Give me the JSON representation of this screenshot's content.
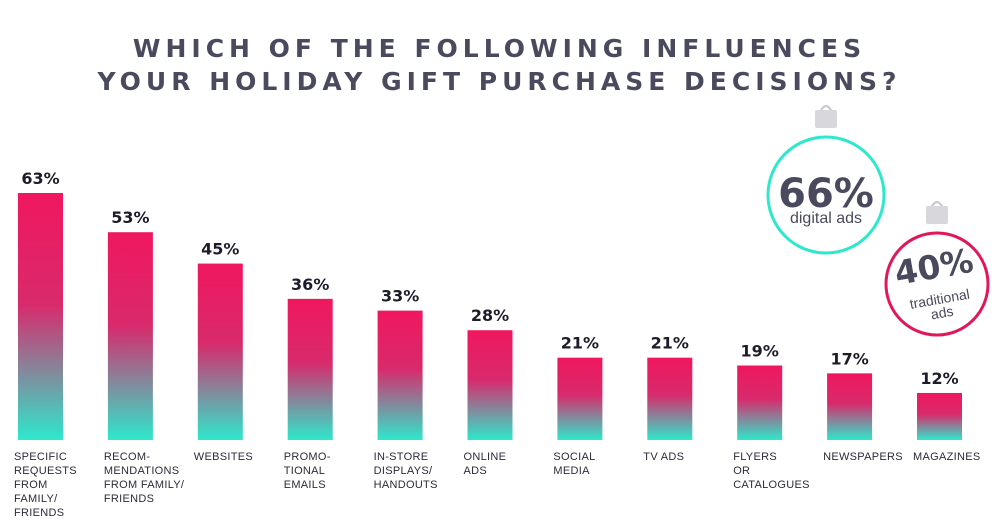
{
  "title_line1": "WHICH OF THE FOLLOWING INFLUENCES",
  "title_line2": "YOUR HOLIDAY GIFT PURCHASE DECISIONS?",
  "chart_data": {
    "type": "bar",
    "title": "WHICH OF THE FOLLOWING INFLUENCES YOUR HOLIDAY GIFT PURCHASE DECISIONS?",
    "categories": [
      [
        "SPECIFIC",
        "REQUESTS",
        "FROM",
        "FAMILY/",
        "FRIENDS"
      ],
      [
        "RECOM-",
        "MENDATIONS",
        "FROM FAMILY/",
        "FRIENDS"
      ],
      [
        "WEBSITES"
      ],
      [
        "PROMO-",
        "TIONAL",
        "EMAILS"
      ],
      [
        "IN-STORE",
        "DISPLAYS/",
        "HANDOUTS"
      ],
      [
        "ONLINE",
        "ADS"
      ],
      [
        "SOCIAL",
        "MEDIA"
      ],
      [
        "TV ADS"
      ],
      [
        "FLYERS",
        "OR",
        "CATALOGUES"
      ],
      [
        "NEWSPAPERS"
      ],
      [
        "MAGAZINES"
      ]
    ],
    "values": [
      63,
      53,
      45,
      36,
      33,
      28,
      21,
      21,
      19,
      17,
      12
    ],
    "value_labels": [
      "63%",
      "53%",
      "45%",
      "36%",
      "33%",
      "28%",
      "21%",
      "21%",
      "19%",
      "17%",
      "12%"
    ],
    "ylim": [
      0,
      63
    ],
    "gradient_colors": {
      "top": "#f0175f",
      "bottom": "#2ee8cc"
    }
  },
  "ornaments": [
    {
      "value": "66%",
      "label_lines": [
        "digital ads"
      ],
      "color": "#2ee8cc"
    },
    {
      "value": "40%",
      "label_lines": [
        "traditional",
        "ads"
      ],
      "color": "#e0175a"
    }
  ]
}
